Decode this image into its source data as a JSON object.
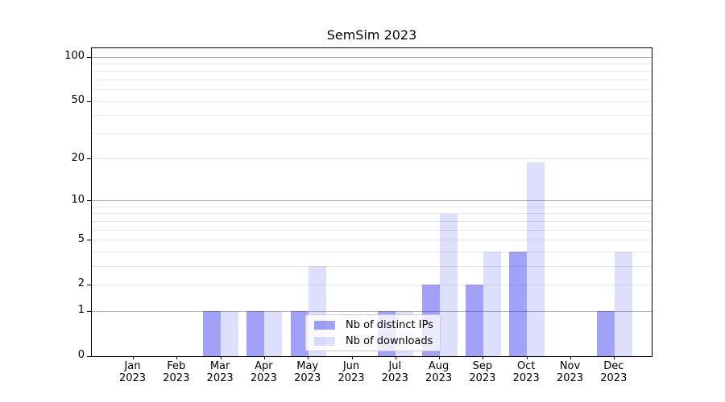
{
  "title": "SemSim 2023",
  "chart_data": {
    "type": "bar",
    "title": "SemSim 2023",
    "categories": [
      "Jan 2023",
      "Feb 2023",
      "Mar 2023",
      "Apr 2023",
      "May 2023",
      "Jun 2023",
      "Jul 2023",
      "Aug 2023",
      "Sep 2023",
      "Oct 2023",
      "Nov 2023",
      "Dec 2023"
    ],
    "series": [
      {
        "name": "Nb of distinct IPs",
        "color": "rgba(20,20,238,0.40)",
        "values": [
          0,
          0,
          1,
          1,
          1,
          0,
          1,
          2,
          2,
          4,
          0,
          1
        ]
      },
      {
        "name": "Nb of downloads",
        "color": "rgba(20,20,238,0.14)",
        "values": [
          0,
          0,
          1,
          1,
          3,
          0,
          1,
          8,
          4,
          19,
          0,
          4
        ]
      }
    ],
    "xlabel": "",
    "ylabel": "",
    "yscale": "log1p",
    "ylim": [
      0,
      100
    ],
    "yticks": [
      0,
      1,
      2,
      5,
      10,
      20,
      50,
      100
    ],
    "grid": {
      "major": [
        1,
        10,
        100
      ],
      "minor": [
        2,
        3,
        4,
        5,
        6,
        7,
        8,
        9,
        20,
        30,
        40,
        50,
        60,
        70,
        80,
        90
      ],
      "major_color": "#b0b0b0",
      "minor_color": "#e8e8e8"
    },
    "legend_position": "lower center",
    "axis_color": "#000000"
  }
}
